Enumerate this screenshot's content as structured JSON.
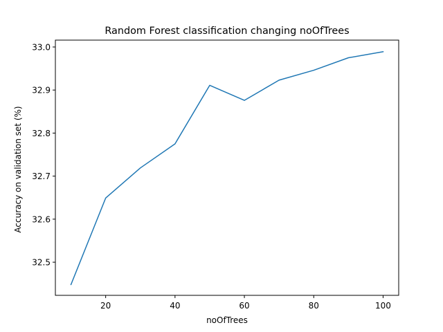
{
  "chart_data": {
    "type": "line",
    "title": "Random Forest classification changing noOfTrees",
    "xlabel": "noOfTrees",
    "ylabel": "Accuracy on validation set (%)",
    "xlim": [
      5.5,
      104.5
    ],
    "ylim": [
      32.423,
      33.016
    ],
    "grid": false,
    "x_ticks": [
      20,
      40,
      60,
      80,
      100
    ],
    "x_tick_labels": [
      "20",
      "40",
      "60",
      "80",
      "100"
    ],
    "y_ticks": [
      32.5,
      32.6,
      32.7,
      32.8,
      32.9,
      33.0
    ],
    "y_tick_labels": [
      "32.5",
      "32.6",
      "32.7",
      "32.8",
      "32.9",
      "33.0"
    ],
    "series": [
      {
        "color": "#1f77b4",
        "x": [
          10,
          20,
          30,
          40,
          50,
          60,
          70,
          80,
          90,
          100
        ],
        "y": [
          32.448,
          32.649,
          32.719,
          32.775,
          32.911,
          32.876,
          32.923,
          32.946,
          32.975,
          32.989
        ]
      }
    ]
  }
}
